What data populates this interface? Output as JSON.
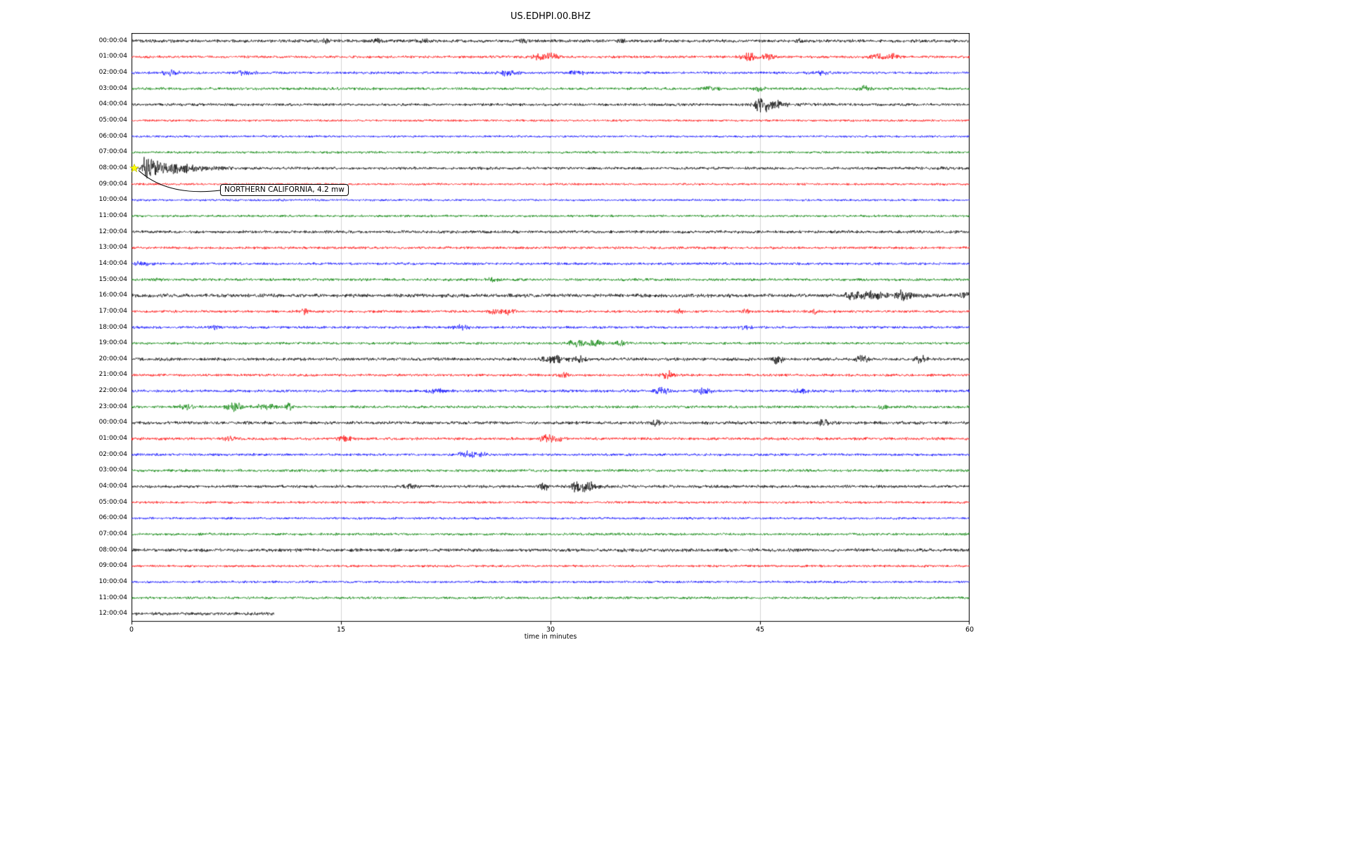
{
  "title": "US.EDHPI.00.BHZ",
  "axis": {
    "xlabel": "time in minutes",
    "xticks": [
      0,
      15,
      30,
      45,
      60
    ],
    "xmin": 0,
    "xmax": 60
  },
  "annotation": {
    "text": "NORTHERN CALIFORNIA, 4.2 mw",
    "row_index": 8,
    "row_label": "08:00:04",
    "minute": 0.2
  },
  "palette": {
    "black": "#000000",
    "red": "#ff0000",
    "blue": "#0000ff",
    "green": "#008000",
    "marker_fill": "#ffff00",
    "marker_edge": "#b8b800",
    "grid": "#c9c9c9",
    "frame": "#000000"
  },
  "chart_data": {
    "type": "line",
    "subtype": "helicorder-seismogram",
    "title": "US.EDHPI.00.BHZ",
    "xlabel": "time in minutes",
    "x_range": [
      0,
      60
    ],
    "minutes_per_row": 60,
    "grid": "vertical-at-15-30-45",
    "rows": [
      {
        "label": "00:00:04",
        "color": "black",
        "base": 1.6,
        "span": [
          0,
          60
        ],
        "events": [
          [
            14,
            1.5,
            0.3
          ],
          [
            17.5,
            2,
            0.2
          ],
          [
            21,
            1.5,
            0.3
          ],
          [
            28,
            1.5,
            0.2
          ],
          [
            35,
            2,
            0.2
          ],
          [
            38,
            1.5,
            0.2
          ],
          [
            48,
            1.5,
            0.2
          ]
        ]
      },
      {
        "label": "01:00:04",
        "color": "red",
        "base": 1.3,
        "span": [
          0,
          60
        ],
        "events": [
          [
            29.3,
            3.5,
            0.4
          ],
          [
            30.2,
            2.5,
            0.3
          ],
          [
            44.2,
            3.5,
            0.4
          ],
          [
            45.6,
            3,
            0.3
          ],
          [
            53.3,
            3,
            0.4
          ],
          [
            54.6,
            2.5,
            0.3
          ]
        ]
      },
      {
        "label": "02:00:04",
        "color": "blue",
        "base": 1.3,
        "span": [
          0,
          60
        ],
        "events": [
          [
            2.8,
            2.5,
            0.4
          ],
          [
            8.2,
            2.5,
            0.4
          ],
          [
            27,
            2.5,
            0.5
          ],
          [
            31.8,
            2,
            0.4
          ],
          [
            49.3,
            2,
            0.4
          ]
        ]
      },
      {
        "label": "03:00:04",
        "color": "green",
        "base": 1.4,
        "span": [
          0,
          60
        ],
        "events": [
          [
            41.5,
            2,
            0.4
          ],
          [
            45,
            1.8,
            0.3
          ],
          [
            52.5,
            2.5,
            0.3
          ]
        ]
      },
      {
        "label": "04:00:04",
        "color": "black",
        "base": 1.4,
        "span": [
          0,
          60
        ],
        "events": [
          [
            44.9,
            6,
            0.25,
            1.2
          ],
          [
            45.8,
            3,
            0.4
          ]
        ]
      },
      {
        "label": "05:00:04",
        "color": "red",
        "base": 1.1,
        "span": [
          0,
          60
        ],
        "events": []
      },
      {
        "label": "06:00:04",
        "color": "blue",
        "base": 1.1,
        "span": [
          0,
          60
        ],
        "events": []
      },
      {
        "label": "07:00:04",
        "color": "green",
        "base": 1.2,
        "span": [
          0,
          60
        ],
        "events": []
      },
      {
        "label": "08:00:04",
        "color": "black",
        "base": 1.4,
        "span": [
          0,
          60
        ],
        "events": [
          [
            0.9,
            11,
            0.08,
            1.6
          ],
          [
            3.5,
            2,
            1.5
          ],
          [
            58.3,
            2.5,
            0.2
          ]
        ]
      },
      {
        "label": "09:00:04",
        "color": "red",
        "base": 1.1,
        "span": [
          0,
          60
        ],
        "events": []
      },
      {
        "label": "10:00:04",
        "color": "blue",
        "base": 1.1,
        "span": [
          0,
          60
        ],
        "events": []
      },
      {
        "label": "11:00:04",
        "color": "green",
        "base": 1.2,
        "span": [
          0,
          60
        ],
        "events": []
      },
      {
        "label": "12:00:04",
        "color": "black",
        "base": 1.5,
        "span": [
          0,
          60
        ],
        "events": []
      },
      {
        "label": "13:00:04",
        "color": "red",
        "base": 1.3,
        "span": [
          0,
          60
        ],
        "events": []
      },
      {
        "label": "14:00:04",
        "color": "blue",
        "base": 1.3,
        "span": [
          0,
          60
        ],
        "events": [
          [
            0.8,
            1.8,
            0.4
          ]
        ]
      },
      {
        "label": "15:00:04",
        "color": "green",
        "base": 1.4,
        "span": [
          0,
          60
        ],
        "events": [
          [
            1.8,
            1.8,
            0.3
          ],
          [
            26,
            2,
            0.3
          ]
        ]
      },
      {
        "label": "16:00:04",
        "color": "black",
        "base": 1.9,
        "span": [
          0,
          60
        ],
        "events": [
          [
            51.6,
            5,
            0.3,
            0.8
          ],
          [
            53.2,
            3,
            0.5
          ],
          [
            55.2,
            4.5,
            0.3,
            0.6
          ],
          [
            59.6,
            3,
            0.3
          ]
        ]
      },
      {
        "label": "17:00:04",
        "color": "red",
        "base": 1.3,
        "span": [
          0,
          60
        ],
        "events": [
          [
            12.4,
            2.5,
            0.2
          ],
          [
            26,
            3,
            0.3
          ],
          [
            27,
            2.8,
            0.3
          ],
          [
            39.2,
            2,
            0.2
          ],
          [
            44,
            1.8,
            0.2
          ],
          [
            49,
            1.8,
            0.2
          ]
        ]
      },
      {
        "label": "18:00:04",
        "color": "blue",
        "base": 1.3,
        "span": [
          0,
          60
        ],
        "events": [
          [
            6,
            2,
            0.3
          ],
          [
            23.6,
            2,
            0.4
          ],
          [
            44,
            1.8,
            0.3
          ]
        ]
      },
      {
        "label": "19:00:04",
        "color": "green",
        "base": 1.3,
        "span": [
          0,
          60
        ],
        "events": [
          [
            31.8,
            3.5,
            0.4
          ],
          [
            33.2,
            2.5,
            0.4
          ],
          [
            35,
            2,
            0.3
          ]
        ]
      },
      {
        "label": "20:00:04",
        "color": "black",
        "base": 1.6,
        "span": [
          0,
          60
        ],
        "events": [
          [
            30.3,
            3.5,
            0.5
          ],
          [
            32,
            2.5,
            0.4
          ],
          [
            46.2,
            3.5,
            0.3
          ],
          [
            52.3,
            3,
            0.3
          ],
          [
            56.5,
            3,
            0.3
          ]
        ]
      },
      {
        "label": "21:00:04",
        "color": "red",
        "base": 1.3,
        "span": [
          0,
          60
        ],
        "events": [
          [
            31,
            2,
            0.3
          ],
          [
            38.4,
            3.5,
            0.3
          ]
        ]
      },
      {
        "label": "22:00:04",
        "color": "blue",
        "base": 1.4,
        "span": [
          0,
          60
        ],
        "events": [
          [
            21.8,
            2,
            0.4
          ],
          [
            38,
            2.5,
            0.4
          ],
          [
            41,
            2.5,
            0.4
          ],
          [
            48,
            2,
            0.3
          ]
        ]
      },
      {
        "label": "23:00:04",
        "color": "green",
        "base": 1.4,
        "span": [
          0,
          60
        ],
        "events": [
          [
            4,
            2,
            0.4
          ],
          [
            7.4,
            4,
            0.4
          ],
          [
            9.6,
            3,
            0.5
          ],
          [
            11.3,
            5,
            0.2
          ],
          [
            53.8,
            2.5,
            0.2
          ]
        ]
      },
      {
        "label": "00:00:04",
        "color": "black",
        "base": 1.6,
        "span": [
          0,
          60
        ],
        "events": [
          [
            37.5,
            2,
            0.3
          ],
          [
            49.6,
            3,
            0.3
          ]
        ]
      },
      {
        "label": "01:00:04",
        "color": "red",
        "base": 1.4,
        "span": [
          0,
          60
        ],
        "events": [
          [
            7,
            2,
            0.3
          ],
          [
            15.2,
            2.5,
            0.4
          ],
          [
            29.7,
            4,
            0.3
          ],
          [
            30.6,
            3,
            0.3
          ]
        ]
      },
      {
        "label": "02:00:04",
        "color": "blue",
        "base": 1.3,
        "span": [
          0,
          60
        ],
        "events": [
          [
            23.9,
            4,
            0.3
          ],
          [
            25,
            2.5,
            0.4
          ]
        ]
      },
      {
        "label": "03:00:04",
        "color": "green",
        "base": 1.4,
        "span": [
          0,
          60
        ],
        "events": []
      },
      {
        "label": "04:00:04",
        "color": "black",
        "base": 1.5,
        "span": [
          0,
          60
        ],
        "events": [
          [
            20,
            1.8,
            0.3
          ],
          [
            29.6,
            3,
            0.3
          ],
          [
            31.8,
            7,
            0.2,
            0.7
          ],
          [
            33,
            3,
            0.4
          ]
        ]
      },
      {
        "label": "05:00:04",
        "color": "red",
        "base": 1.2,
        "span": [
          0,
          60
        ],
        "events": []
      },
      {
        "label": "06:00:04",
        "color": "blue",
        "base": 1.2,
        "span": [
          0,
          60
        ],
        "events": []
      },
      {
        "label": "07:00:04",
        "color": "green",
        "base": 1.3,
        "span": [
          0,
          60
        ],
        "events": []
      },
      {
        "label": "08:00:04",
        "color": "black",
        "base": 1.7,
        "span": [
          0,
          60
        ],
        "events": []
      },
      {
        "label": "09:00:04",
        "color": "red",
        "base": 1.2,
        "span": [
          0,
          60
        ],
        "events": []
      },
      {
        "label": "10:00:04",
        "color": "blue",
        "base": 1.2,
        "span": [
          0,
          60
        ],
        "events": []
      },
      {
        "label": "11:00:04",
        "color": "green",
        "base": 1.3,
        "span": [
          0,
          60
        ],
        "events": []
      },
      {
        "label": "12:00:04",
        "color": "black",
        "base": 1.6,
        "span": [
          0,
          10.2
        ],
        "events": []
      }
    ]
  }
}
